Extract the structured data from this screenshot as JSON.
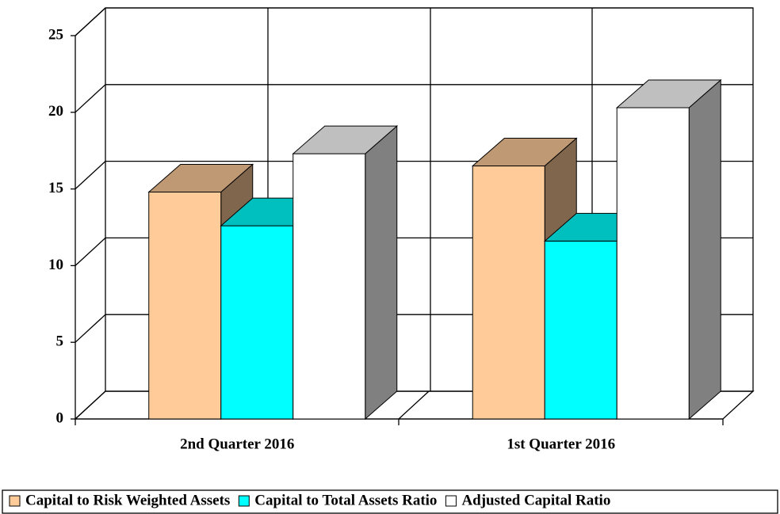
{
  "chart_data": {
    "type": "bar3d",
    "categories": [
      "2nd Quarter 2016",
      "1st Quarter 2016"
    ],
    "series": [
      {
        "name": "Capital to Risk Weighted Assets",
        "color": "#ffcc99",
        "values": [
          14.8,
          16.5
        ]
      },
      {
        "name": "Capital to Total Assets Ratio",
        "color": "#00ffff",
        "values": [
          12.6,
          11.6
        ]
      },
      {
        "name": "Adjusted Capital Ratio",
        "color": "#ffffff",
        "values": [
          17.3,
          20.3
        ]
      }
    ],
    "ylim": [
      0,
      25
    ],
    "yticks": [
      0,
      5,
      10,
      15,
      20,
      25
    ],
    "grid": true,
    "legend": "bottom"
  }
}
